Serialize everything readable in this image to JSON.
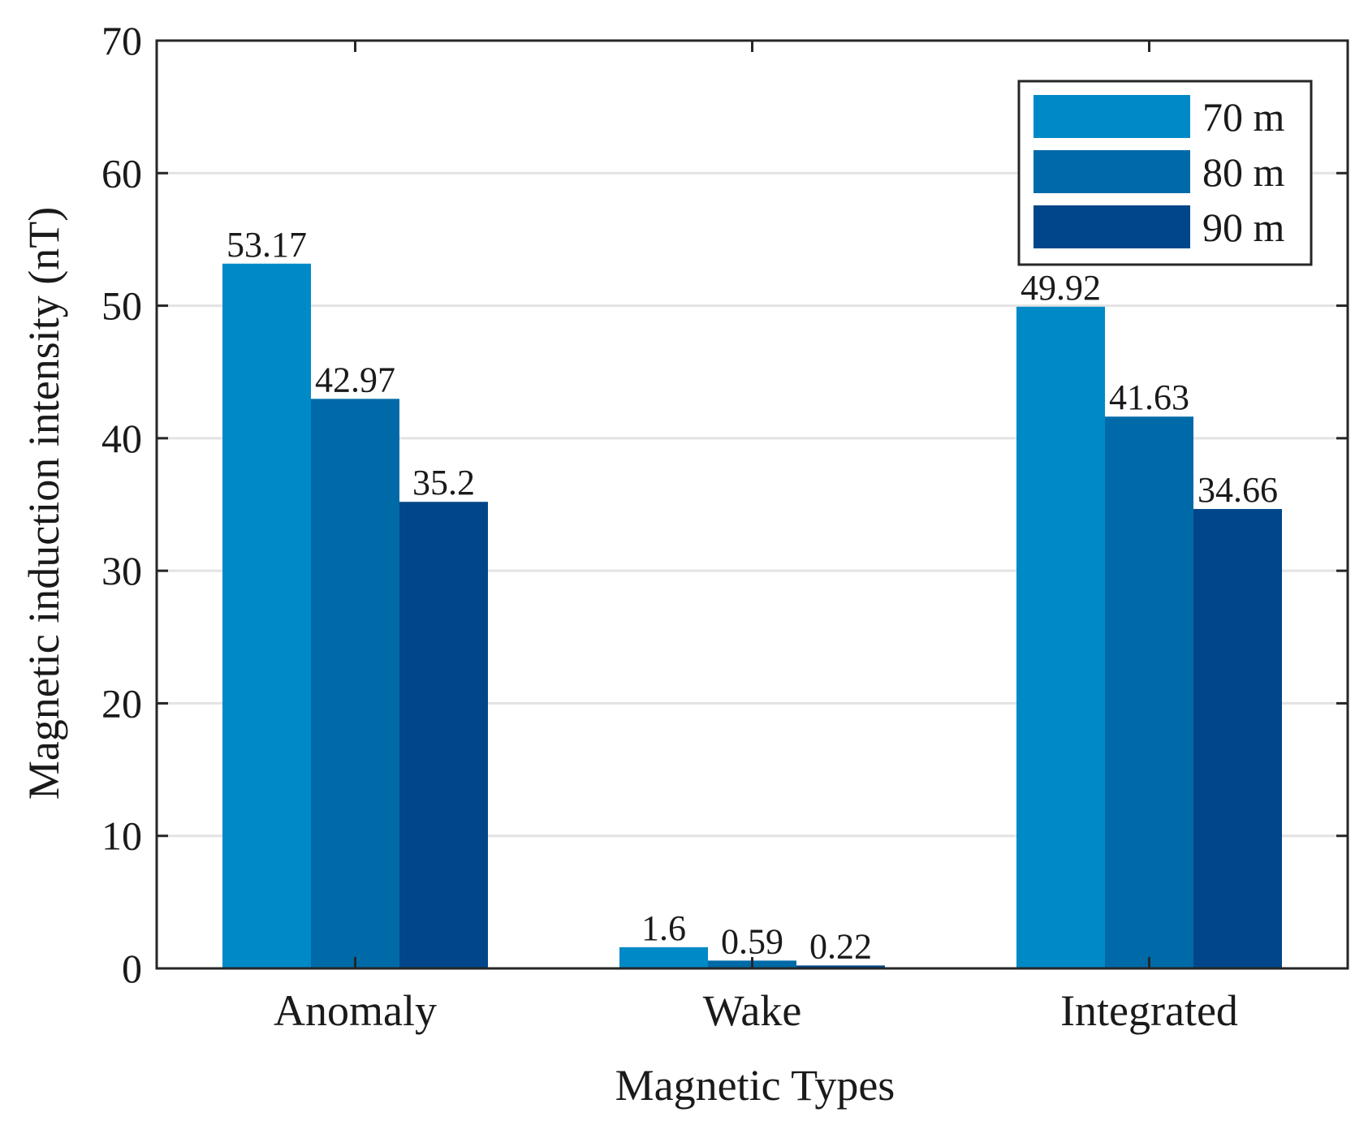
{
  "chart_data": {
    "type": "bar",
    "title": "",
    "xlabel": "Magnetic Types",
    "ylabel": "Magnetic induction intensity (nT)",
    "ylim": [
      0,
      70
    ],
    "yticks": [
      0,
      10,
      20,
      30,
      40,
      50,
      60,
      70
    ],
    "grid": true,
    "legend_position": "top-right",
    "categories": [
      "Anomaly",
      "Wake",
      "Integrated"
    ],
    "series": [
      {
        "name": "70 m",
        "color": "#0089c7",
        "values": [
          53.17,
          1.6,
          49.92
        ],
        "labels": [
          "53.17",
          "1.6",
          "49.92"
        ]
      },
      {
        "name": "80 m",
        "color": "#006aa8",
        "values": [
          42.97,
          0.59,
          41.63
        ],
        "labels": [
          "42.97",
          "0.59",
          "41.63"
        ]
      },
      {
        "name": "90 m",
        "color": "#00468a",
        "values": [
          35.2,
          0.22,
          34.66
        ],
        "labels": [
          "35.2",
          "0.22",
          "34.66"
        ]
      }
    ]
  }
}
